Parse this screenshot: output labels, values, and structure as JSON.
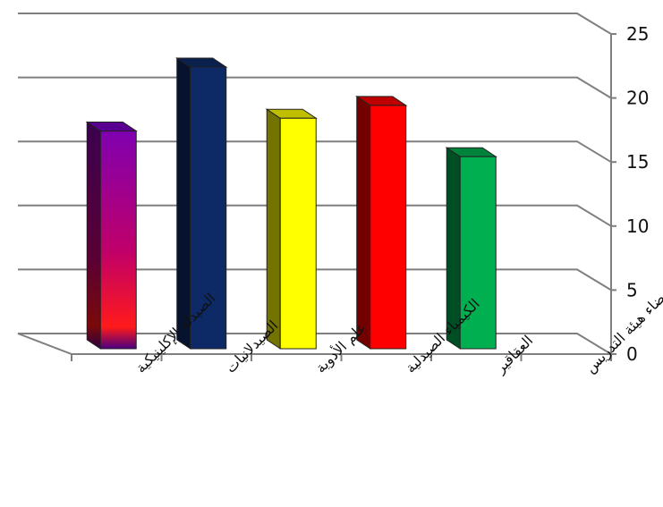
{
  "chart_data": {
    "type": "bar",
    "style": "3d-column",
    "categories": [
      "الصيدلة الإكلينيكية",
      "الصيدلانيات",
      "علم الأدوية",
      "الكيمياء الصيدلية",
      "العقاقير",
      "أعضاء هيئة التدريس"
    ],
    "values": [
      17,
      22,
      18,
      19,
      15,
      null
    ],
    "ylim": [
      0,
      25
    ],
    "yticks": [
      0,
      5,
      10,
      15,
      20,
      25
    ],
    "grid": true,
    "legend": "none",
    "colors": [
      "#8b00a8",
      "#0d2a66",
      "#ffff00",
      "#ff0000",
      "#00b050",
      null
    ],
    "gradient_first_bar": [
      "#7f00b0",
      "#c0006a",
      "#ff1a1a"
    ]
  }
}
